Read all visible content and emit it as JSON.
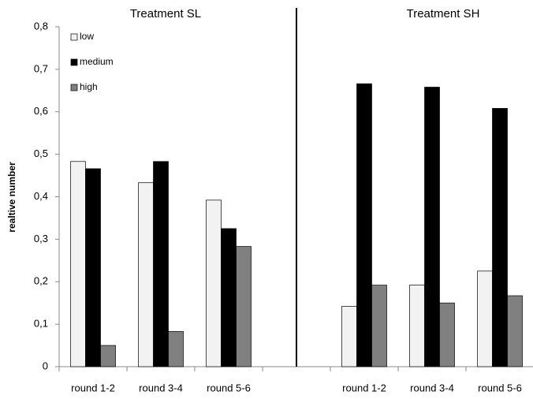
{
  "chart_data": {
    "type": "bar",
    "group_labels": [
      "Treatment SL",
      "Treatment SH"
    ],
    "y_label": "realtive number",
    "categories": [
      "round 1-2",
      "round 3-4",
      "round 5-6",
      null,
      "round 1-2",
      "round 3-4",
      "round 5-6"
    ],
    "series": [
      {
        "name": "low",
        "color": "#f2f2f2",
        "values": [
          0.483,
          0.433,
          0.392,
          null,
          0.142,
          0.192,
          0.225
        ]
      },
      {
        "name": "medium",
        "color": "#000000",
        "values": [
          0.466,
          0.483,
          0.325,
          null,
          0.666,
          0.658,
          0.608
        ]
      },
      {
        "name": "high",
        "color": "#808080",
        "values": [
          0.05,
          0.083,
          0.283,
          null,
          0.192,
          0.15,
          0.167
        ]
      }
    ],
    "ylim": [
      0,
      0.8
    ],
    "yticks": [
      0,
      {
        "value": 0.1,
        "label": "0,1"
      },
      {
        "value": 0.2,
        "label": "0,2"
      },
      {
        "value": 0.3,
        "label": "0,3"
      },
      {
        "value": 0.4,
        "label": "0,4"
      },
      {
        "value": 0.5,
        "label": "0,5"
      },
      {
        "value": 0.6,
        "label": "0,6"
      },
      {
        "value": 0.7,
        "label": "0,7"
      },
      {
        "value": 0.8,
        "label": "0,8"
      }
    ],
    "legend": "top-left",
    "grid": false
  }
}
